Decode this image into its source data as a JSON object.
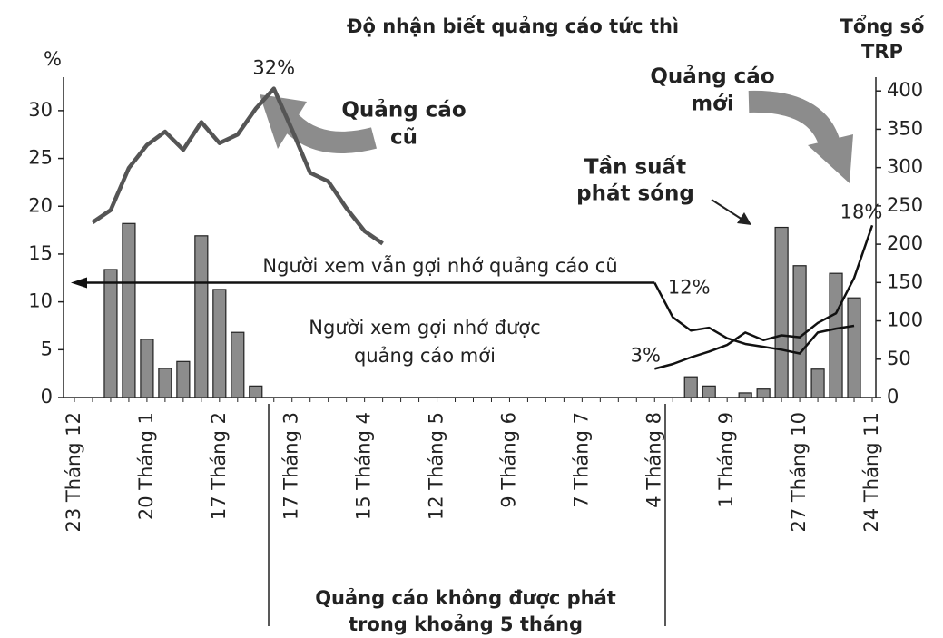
{
  "chart_data": {
    "type": "bar-line",
    "title": "Độ nhận biết quảng cáo tức thì",
    "y_label": "%",
    "y2_label": [
      "Tổng số",
      "TRP"
    ],
    "annotations": [
      {
        "lines": [
          "Quảng cáo",
          "cũ"
        ]
      },
      {
        "lines": [
          "Quảng cáo",
          "mới"
        ]
      },
      {
        "lines": [
          "Quảng cáo không được phát",
          "trong khoảng 5 tháng"
        ]
      }
    ],
    "categories": [
      "23 Tháng 12",
      null,
      null,
      null,
      "20 Tháng 1",
      null,
      null,
      null,
      "17 Tháng 2",
      null,
      null,
      null,
      "17 Tháng 3",
      null,
      null,
      null,
      "15 Tháng 4",
      null,
      null,
      null,
      "12 Tháng 5",
      null,
      null,
      null,
      "9 Tháng 6",
      null,
      null,
      null,
      "7 Tháng 7",
      null,
      null,
      null,
      "4 Tháng 8",
      null,
      null,
      null,
      "1 Tháng 9",
      null,
      null,
      null,
      "27 Tháng 10",
      null,
      null,
      null,
      "24 Tháng 11"
    ],
    "series": [
      {
        "name": [
          "Tần suất",
          "phát sóng"
        ],
        "type": "bar",
        "axis": "y2",
        "color": "#8c8c8c",
        "values": [
          null,
          null,
          167,
          227,
          76,
          38,
          47,
          211,
          141,
          85,
          15,
          null,
          null,
          null,
          null,
          null,
          null,
          null,
          null,
          null,
          null,
          null,
          null,
          null,
          null,
          null,
          null,
          null,
          null,
          null,
          null,
          null,
          null,
          null,
          27,
          15,
          null,
          6,
          11,
          222,
          172,
          37,
          162,
          130,
          null
        ]
      },
      {
        "name": [
          "Người xem vẫn gợi nhớ quảng cáo cũ"
        ],
        "type": "line",
        "color": "#555555",
        "values": [
          null,
          18.3,
          19.6,
          24,
          26.4,
          27.8,
          25.9,
          28.8,
          26.6,
          27.5,
          30.2,
          32.3,
          28,
          23.5,
          22.6,
          19.8,
          17.4,
          16.1,
          null,
          null,
          null,
          null,
          null,
          null,
          null,
          null,
          null,
          null,
          null,
          null,
          null,
          null,
          12,
          8.4,
          7,
          7.3,
          6.2,
          5.6,
          5.3,
          5,
          4.6,
          6.8,
          7.2,
          7.5,
          null
        ],
        "value_labels": [
          null,
          null,
          null,
          null,
          null,
          null,
          null,
          null,
          null,
          null,
          null,
          "32%",
          null,
          null,
          null,
          null,
          null,
          null,
          null,
          null,
          null,
          null,
          null,
          null,
          null,
          null,
          null,
          null,
          null,
          null,
          null,
          null,
          "12%",
          null,
          null,
          null,
          null,
          null,
          null,
          null,
          null,
          null,
          null,
          null,
          null
        ]
      },
      {
        "name": [
          "Người xem gợi nhớ được",
          "quảng cáo mới"
        ],
        "type": "line",
        "color": "#222222",
        "values": [
          null,
          null,
          null,
          null,
          null,
          null,
          null,
          null,
          null,
          null,
          null,
          null,
          null,
          null,
          null,
          null,
          null,
          null,
          null,
          null,
          null,
          null,
          null,
          null,
          null,
          null,
          null,
          null,
          null,
          null,
          null,
          null,
          3,
          3.5,
          4.2,
          4.8,
          5.5,
          6.8,
          6,
          6.5,
          6.3,
          7.8,
          8.8,
          12.5,
          18
        ],
        "value_labels": [
          null,
          null,
          null,
          null,
          null,
          null,
          null,
          null,
          null,
          null,
          null,
          null,
          null,
          null,
          null,
          null,
          null,
          null,
          null,
          null,
          null,
          null,
          null,
          null,
          null,
          null,
          null,
          null,
          null,
          null,
          null,
          null,
          "3%",
          null,
          null,
          null,
          null,
          null,
          null,
          null,
          null,
          null,
          null,
          null,
          "18%"
        ]
      }
    ],
    "ylim": [
      0,
      33.5
    ],
    "yticks": [
      0,
      5,
      10,
      15,
      20,
      25,
      30
    ],
    "y2lim": [
      0,
      418
    ],
    "y2ticks": [
      0,
      50,
      100,
      150,
      200,
      250,
      300,
      350,
      400
    ]
  }
}
